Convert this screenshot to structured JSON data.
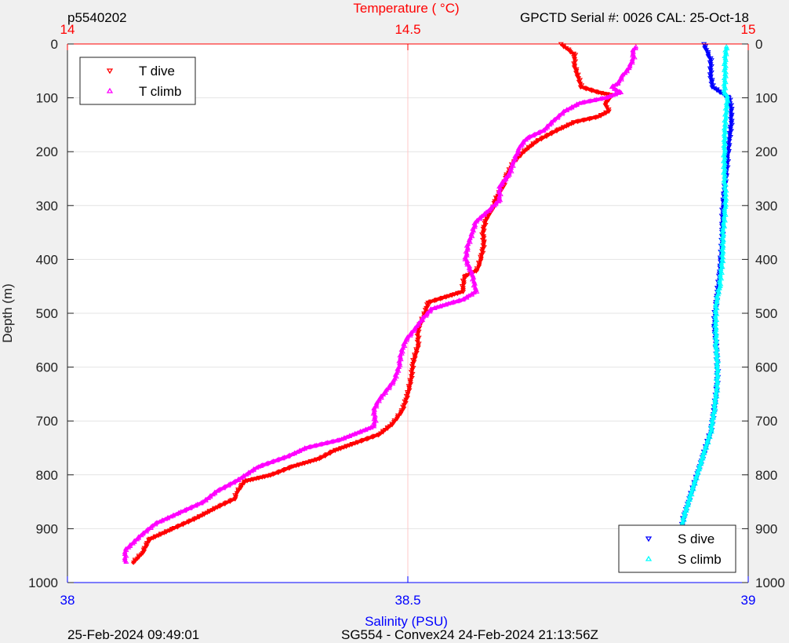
{
  "header": {
    "left": "p5540202",
    "right": "GPCTD Serial #: 0026 CAL: 25-Oct-18"
  },
  "footer": {
    "left": "25-Feb-2024 09:49:01",
    "center": "SG554 - Convex24 24-Feb-2024 21:13:56Z"
  },
  "chart_data": {
    "type": "line",
    "ylabel": "Depth (m)",
    "top_xlabel": "Temperature (    °C)",
    "bottom_xlabel": "Salinity (PSU)",
    "ylim": [
      1000,
      0
    ],
    "y_reversed": true,
    "y_ticks": [
      "0",
      "100",
      "200",
      "300",
      "400",
      "500",
      "600",
      "700",
      "800",
      "900",
      "1000"
    ],
    "temp_xlim": [
      14,
      15
    ],
    "temp_ticks": [
      "14",
      "14.5",
      "15"
    ],
    "sal_xlim": [
      38,
      39
    ],
    "sal_ticks": [
      "38",
      "38.5",
      "39"
    ],
    "grid": "horizontal",
    "colors": {
      "top_axis": "#ff0000",
      "bottom_axis": "#0000ff",
      "t_dive": "#ff0000",
      "t_climb": "#ff00ff",
      "s_dive": "#0000ff",
      "s_climb": "#00ffff"
    },
    "legend_top": {
      "placement": "top-left",
      "entries": [
        {
          "label": "T dive",
          "marker": "triangle-down",
          "color": "#ff0000"
        },
        {
          "label": "T climb",
          "marker": "triangle-up",
          "color": "#ff00ff"
        }
      ]
    },
    "legend_bottom": {
      "placement": "bottom-right",
      "entries": [
        {
          "label": "S dive",
          "marker": "triangle-down",
          "color": "#0000ff"
        },
        {
          "label": "S climb",
          "marker": "triangle-up",
          "color": "#00ffff"
        }
      ]
    },
    "series": [
      {
        "name": "T dive",
        "axis": "temperature",
        "points": [
          [
            14.725,
            0
          ],
          [
            14.735,
            10
          ],
          [
            14.745,
            20
          ],
          [
            14.745,
            40
          ],
          [
            14.75,
            60
          ],
          [
            14.755,
            80
          ],
          [
            14.78,
            90
          ],
          [
            14.8,
            95
          ],
          [
            14.79,
            110
          ],
          [
            14.795,
            125
          ],
          [
            14.78,
            135
          ],
          [
            14.745,
            145
          ],
          [
            14.72,
            160
          ],
          [
            14.69,
            180
          ],
          [
            14.67,
            200
          ],
          [
            14.655,
            220
          ],
          [
            14.645,
            245
          ],
          [
            14.64,
            265
          ],
          [
            14.63,
            285
          ],
          [
            14.625,
            305
          ],
          [
            14.615,
            325
          ],
          [
            14.61,
            350
          ],
          [
            14.612,
            370
          ],
          [
            14.608,
            395
          ],
          [
            14.602,
            420
          ],
          [
            14.583,
            432
          ],
          [
            14.58,
            460
          ],
          [
            14.555,
            470
          ],
          [
            14.53,
            480
          ],
          [
            14.525,
            500
          ],
          [
            14.515,
            530
          ],
          [
            14.515,
            560
          ],
          [
            14.508,
            590
          ],
          [
            14.505,
            620
          ],
          [
            14.5,
            650
          ],
          [
            14.492,
            680
          ],
          [
            14.478,
            705
          ],
          [
            14.458,
            725
          ],
          [
            14.425,
            740
          ],
          [
            14.392,
            755
          ],
          [
            14.37,
            770
          ],
          [
            14.33,
            785
          ],
          [
            14.3,
            800
          ],
          [
            14.26,
            812
          ],
          [
            14.25,
            830
          ],
          [
            14.245,
            845
          ],
          [
            14.22,
            860
          ],
          [
            14.19,
            880
          ],
          [
            14.155,
            900
          ],
          [
            14.12,
            920
          ],
          [
            14.11,
            945
          ],
          [
            14.095,
            965
          ]
        ]
      },
      {
        "name": "T climb",
        "axis": "temperature",
        "points": [
          [
            14.835,
            5
          ],
          [
            14.83,
            15
          ],
          [
            14.832,
            25
          ],
          [
            14.825,
            45
          ],
          [
            14.815,
            60
          ],
          [
            14.81,
            72
          ],
          [
            14.8,
            80
          ],
          [
            14.812,
            90
          ],
          [
            14.79,
            100
          ],
          [
            14.752,
            110
          ],
          [
            14.73,
            125
          ],
          [
            14.712,
            145
          ],
          [
            14.7,
            160
          ],
          [
            14.675,
            175
          ],
          [
            14.665,
            190
          ],
          [
            14.66,
            205
          ],
          [
            14.655,
            220
          ],
          [
            14.65,
            240
          ],
          [
            14.635,
            265
          ],
          [
            14.635,
            290
          ],
          [
            14.618,
            310
          ],
          [
            14.6,
            330
          ],
          [
            14.595,
            350
          ],
          [
            14.588,
            375
          ],
          [
            14.585,
            400
          ],
          [
            14.595,
            430
          ],
          [
            14.6,
            460
          ],
          [
            14.58,
            475
          ],
          [
            14.56,
            482
          ],
          [
            14.535,
            492
          ],
          [
            14.522,
            510
          ],
          [
            14.51,
            530
          ],
          [
            14.497,
            550
          ],
          [
            14.49,
            575
          ],
          [
            14.487,
            600
          ],
          [
            14.48,
            625
          ],
          [
            14.468,
            645
          ],
          [
            14.458,
            660
          ],
          [
            14.45,
            680
          ],
          [
            14.452,
            700
          ],
          [
            14.45,
            710
          ],
          [
            14.4,
            735
          ],
          [
            14.35,
            750
          ],
          [
            14.325,
            765
          ],
          [
            14.28,
            785
          ],
          [
            14.25,
            810
          ],
          [
            14.22,
            830
          ],
          [
            14.2,
            850
          ],
          [
            14.165,
            870
          ],
          [
            14.13,
            890
          ],
          [
            14.11,
            910
          ],
          [
            14.085,
            940
          ],
          [
            14.085,
            965
          ]
        ]
      },
      {
        "name": "S dive",
        "axis": "salinity",
        "points": [
          [
            38.935,
            0
          ],
          [
            38.94,
            15
          ],
          [
            38.945,
            30
          ],
          [
            38.945,
            60
          ],
          [
            38.948,
            80
          ],
          [
            38.96,
            90
          ],
          [
            38.972,
            100
          ],
          [
            38.975,
            120
          ],
          [
            38.975,
            150
          ],
          [
            38.972,
            180
          ],
          [
            38.97,
            210
          ],
          [
            38.968,
            240
          ],
          [
            38.965,
            270
          ],
          [
            38.963,
            300
          ],
          [
            38.962,
            330
          ],
          [
            38.962,
            360
          ],
          [
            38.96,
            400
          ],
          [
            38.958,
            430
          ],
          [
            38.955,
            460
          ],
          [
            38.952,
            490
          ],
          [
            38.95,
            520
          ],
          [
            38.953,
            560
          ],
          [
            38.955,
            600
          ],
          [
            38.954,
            640
          ],
          [
            38.95,
            680
          ],
          [
            38.945,
            720
          ],
          [
            38.935,
            760
          ],
          [
            38.925,
            800
          ],
          [
            38.915,
            840
          ],
          [
            38.905,
            880
          ],
          [
            38.9,
            920
          ],
          [
            38.895,
            965
          ]
        ]
      },
      {
        "name": "S climb",
        "axis": "salinity",
        "points": [
          [
            38.968,
            5
          ],
          [
            38.966,
            30
          ],
          [
            38.966,
            60
          ],
          [
            38.965,
            90
          ],
          [
            38.97,
            100
          ],
          [
            38.968,
            120
          ],
          [
            38.966,
            150
          ],
          [
            38.965,
            200
          ],
          [
            38.965,
            250
          ],
          [
            38.967,
            280
          ],
          [
            38.966,
            310
          ],
          [
            38.963,
            350
          ],
          [
            38.962,
            400
          ],
          [
            38.958,
            450
          ],
          [
            38.953,
            480
          ],
          [
            38.952,
            520
          ],
          [
            38.953,
            560
          ],
          [
            38.955,
            600
          ],
          [
            38.954,
            640
          ],
          [
            38.95,
            680
          ],
          [
            38.945,
            720
          ],
          [
            38.935,
            760
          ],
          [
            38.925,
            800
          ],
          [
            38.915,
            840
          ],
          [
            38.905,
            880
          ],
          [
            38.9,
            920
          ],
          [
            38.895,
            965
          ]
        ]
      }
    ]
  }
}
